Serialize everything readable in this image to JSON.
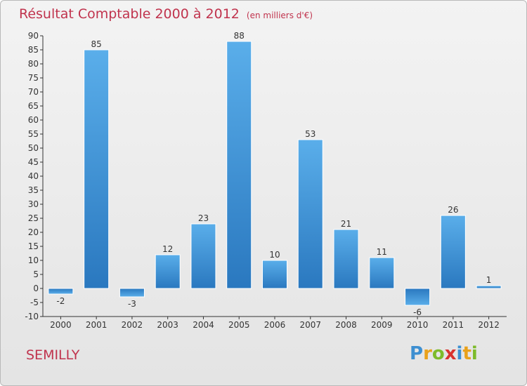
{
  "header": {
    "title": "Résultat Comptable 2000 à 2012",
    "subtitle": "(en milliers d'€)"
  },
  "footer": {
    "commune": "SEMILLY",
    "logo": {
      "text": "Proxiti",
      "letters": [
        {
          "char": "P",
          "color": "#3d8fd1"
        },
        {
          "char": "r",
          "color": "#e9a11a"
        },
        {
          "char": "o",
          "color": "#7dbb2a"
        },
        {
          "char": "x",
          "color": "#d9322e"
        },
        {
          "char": "i",
          "color": "#3d8fd1"
        },
        {
          "char": "t",
          "color": "#e9a11a"
        },
        {
          "char": "i",
          "color": "#7dbb2a"
        }
      ]
    }
  },
  "chart_data": {
    "type": "bar",
    "title": "Résultat Comptable 2000 à 2012",
    "subtitle": "(en milliers d'€)",
    "categories": [
      "2000",
      "2001",
      "2002",
      "2003",
      "2004",
      "2005",
      "2006",
      "2007",
      "2008",
      "2009",
      "2010",
      "2011",
      "2012"
    ],
    "values": [
      -2,
      85,
      -3,
      12,
      23,
      88,
      10,
      53,
      21,
      11,
      -6,
      26,
      1
    ],
    "ylim": [
      -10,
      90
    ],
    "yticks": [
      -10,
      -5,
      0,
      5,
      10,
      15,
      20,
      25,
      30,
      35,
      40,
      45,
      50,
      55,
      60,
      65,
      70,
      75,
      80,
      85,
      90
    ],
    "grid": false,
    "legend": "none",
    "colors": {
      "bar_light": "#5aaeea",
      "bar_dark": "#2a78bf",
      "axis": "#333333",
      "text": "#333333",
      "title": "#c0334d"
    }
  }
}
